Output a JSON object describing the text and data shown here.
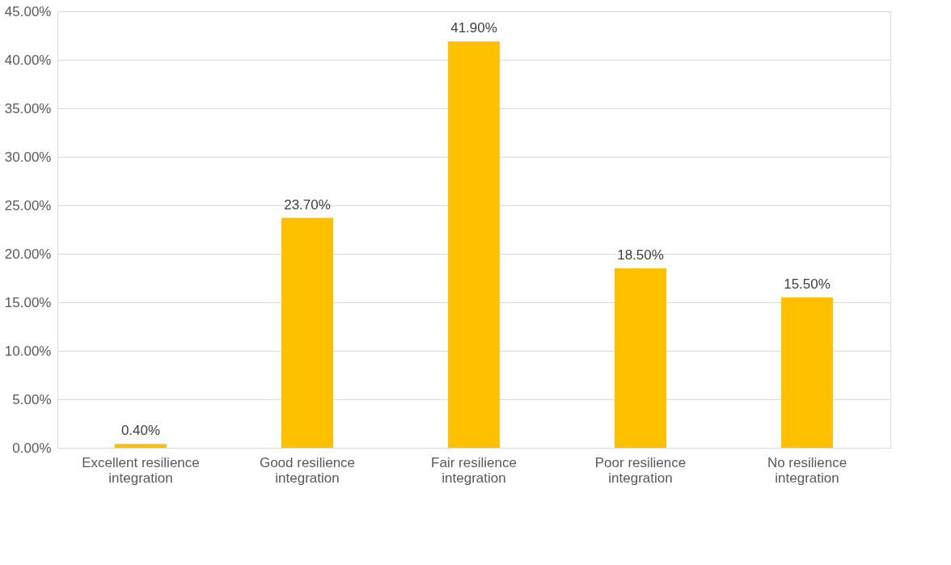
{
  "chart_data": {
    "type": "bar",
    "categories": [
      "Excellent resilience integration",
      "Good resilience integration",
      "Fair resilience integration",
      "Poor resilience integration",
      "No resilience integration"
    ],
    "values": [
      0.4,
      23.7,
      41.9,
      18.5,
      15.5
    ],
    "color": "#ffc000",
    "value_labels": [
      "0.40%",
      "23.70%",
      "41.90%",
      "18.50%",
      "15.50%"
    ],
    "ylim": [
      0,
      45
    ],
    "yticks": [
      {
        "value": 0,
        "label": "0.00%"
      },
      {
        "value": 5,
        "label": "5.00%"
      },
      {
        "value": 10,
        "label": "10.00%"
      },
      {
        "value": 15,
        "label": "15.00%"
      },
      {
        "value": 20,
        "label": "20.00%"
      },
      {
        "value": 25,
        "label": "25.00%"
      },
      {
        "value": 30,
        "label": "30.00%"
      },
      {
        "value": 35,
        "label": "35.00%"
      },
      {
        "value": 40,
        "label": "40.00%"
      },
      {
        "value": 45,
        "label": "45.00%"
      }
    ],
    "grid": "y"
  }
}
